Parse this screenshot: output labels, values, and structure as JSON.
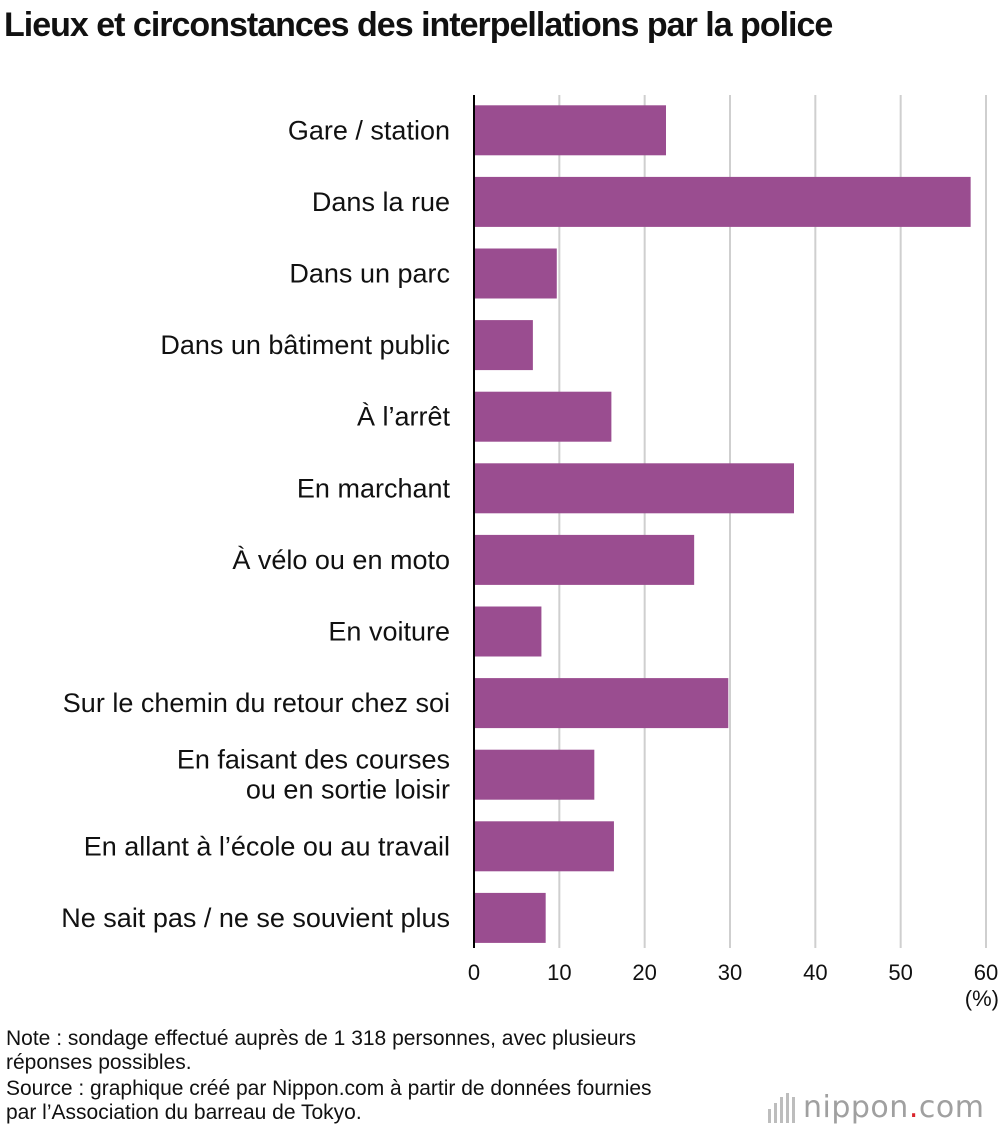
{
  "chart_data": {
    "type": "bar",
    "orientation": "horizontal",
    "title": "Lieux et circonstances des interpellations par la police",
    "categories": [
      [
        "Gare / station"
      ],
      [
        "Dans la rue"
      ],
      [
        "Dans un parc"
      ],
      [
        "Dans un bâtiment public"
      ],
      [
        "À l’arrêt"
      ],
      [
        "En marchant"
      ],
      [
        "À vélo ou en moto"
      ],
      [
        "En voiture"
      ],
      [
        "Sur le chemin du retour chez soi"
      ],
      [
        "En faisant des courses",
        "ou en sortie loisir"
      ],
      [
        "En allant à l’école ou au travail"
      ],
      [
        "Ne sait pas / ne se souvient plus"
      ]
    ],
    "values": [
      22.5,
      58.2,
      9.7,
      6.9,
      16.1,
      37.5,
      25.8,
      7.9,
      29.8,
      14.1,
      16.4,
      8.4
    ],
    "xlim": [
      0,
      60
    ],
    "xticks": [
      0,
      10,
      20,
      30,
      40,
      50,
      60
    ],
    "xunit": "(%)",
    "bar_color": "#9a4d90",
    "grid": "vertical"
  },
  "footer": {
    "note": "Note : sondage effectué auprès de 1 318 personnes, avec plusieurs\nréponses possibles.",
    "source": "Source : graphique créé par Nippon.com à partir de données fournies\npar l’Association du barreau de Tokyo."
  },
  "logo": {
    "text_main": "nippon",
    "text_dot": ".",
    "text_end": "com"
  }
}
